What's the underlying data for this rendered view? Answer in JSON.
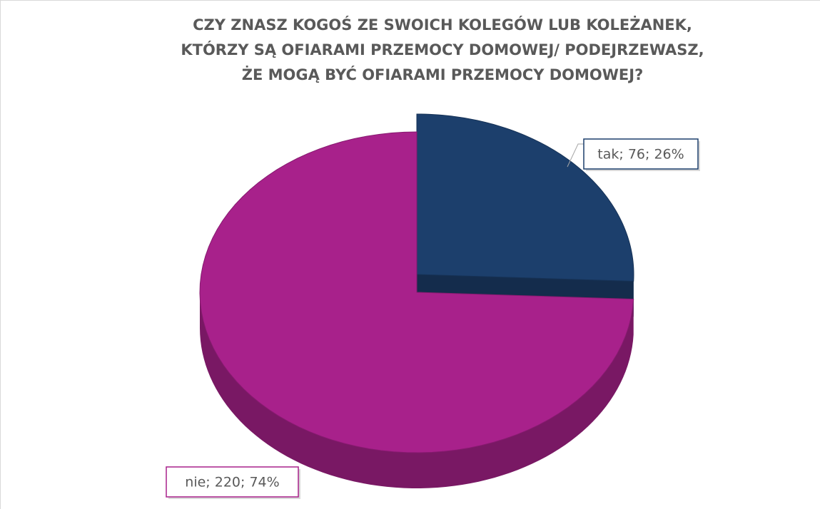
{
  "chart_data": {
    "type": "pie",
    "title": [
      "CZY ZNASZ KOGOŚ ZE SWOICH KOLEGÓW LUB KOLEŻANEK,",
      "KTÓRZY SĄ OFIARAMI PRZEMOCY DOMOWEJ/ PODEJRZEWASZ,",
      "ŻE MOGĄ BYĆ OFIARAMI PRZEMOCY DOMOWEJ?"
    ],
    "categories": [
      "tak",
      "nie"
    ],
    "values": [
      76,
      220
    ],
    "value_labels": [
      "tak; 76; 26%",
      "nie; 220; 74%"
    ],
    "colors": [
      "#1c3f6c",
      "#a8218b"
    ]
  }
}
